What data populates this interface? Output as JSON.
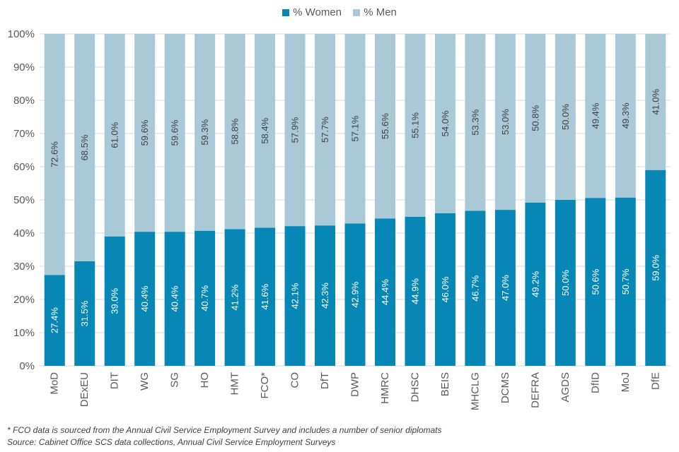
{
  "colors": {
    "women": "#0787b5",
    "men": "#a9c9d7",
    "grid": "#d9d9d9",
    "axis_text": "#595959",
    "label_women": "#ffffff",
    "label_men": "#404040"
  },
  "chart_data": {
    "type": "bar",
    "stacked": true,
    "title": "",
    "xlabel": "",
    "ylabel": "",
    "ylim": [
      0,
      100
    ],
    "y_ticks": [
      0,
      10,
      20,
      30,
      40,
      50,
      60,
      70,
      80,
      90,
      100
    ],
    "y_tick_labels": [
      "0%",
      "10%",
      "20%",
      "30%",
      "40%",
      "50%",
      "60%",
      "70%",
      "80%",
      "90%",
      "100%"
    ],
    "legend_position": "top",
    "categories": [
      "MoD",
      "DExEU",
      "DIT",
      "WG",
      "SG",
      "HO",
      "HMT",
      "FCO*",
      "CO",
      "DfT",
      "DWP",
      "HMRC",
      "DHSC",
      "BEIS",
      "MHCLG",
      "DCMS",
      "DEFRA",
      "AGDS",
      "DfID",
      "MoJ",
      "DfE"
    ],
    "series": [
      {
        "name": "% Women",
        "values": [
          27.4,
          31.5,
          39.0,
          40.4,
          40.4,
          40.7,
          41.2,
          41.6,
          42.1,
          42.3,
          42.9,
          44.4,
          44.9,
          46.0,
          46.7,
          47.0,
          49.2,
          50.0,
          50.6,
          50.7,
          59.0
        ],
        "labels": [
          "27.4%",
          "31.5%",
          "39.0%",
          "40.4%",
          "40.4%",
          "40.7%",
          "41.2%",
          "41.6%",
          "42.1%",
          "42.3%",
          "42.9%",
          "44.4%",
          "44.9%",
          "46.0%",
          "46.7%",
          "47.0%",
          "49.2%",
          "50.0%",
          "50.6%",
          "50.7%",
          "59.0%"
        ]
      },
      {
        "name": "% Men",
        "values": [
          72.6,
          68.5,
          61.0,
          59.6,
          59.6,
          59.3,
          58.8,
          58.4,
          57.9,
          57.7,
          57.1,
          55.6,
          55.1,
          54.0,
          53.3,
          53.0,
          50.8,
          50.0,
          49.4,
          49.3,
          41.0
        ],
        "labels": [
          "72.6%",
          "68.5%",
          "61.0%",
          "59.6%",
          "59.6%",
          "59.3%",
          "58.8%",
          "58.4%",
          "57.9%",
          "57.7%",
          "57.1%",
          "55.6%",
          "55.1%",
          "54.0%",
          "53.3%",
          "53.0%",
          "50.8%",
          "50.0%",
          "49.4%",
          "49.3%",
          "41.0%"
        ]
      }
    ]
  },
  "footnotes": {
    "fco_note": "* FCO data is sourced from the Annual Civil Service Employment Survey and includes a number of senior diplomats",
    "source": "Source: Cabinet Office SCS data collections, Annual Civil Service Employment Surveys"
  }
}
